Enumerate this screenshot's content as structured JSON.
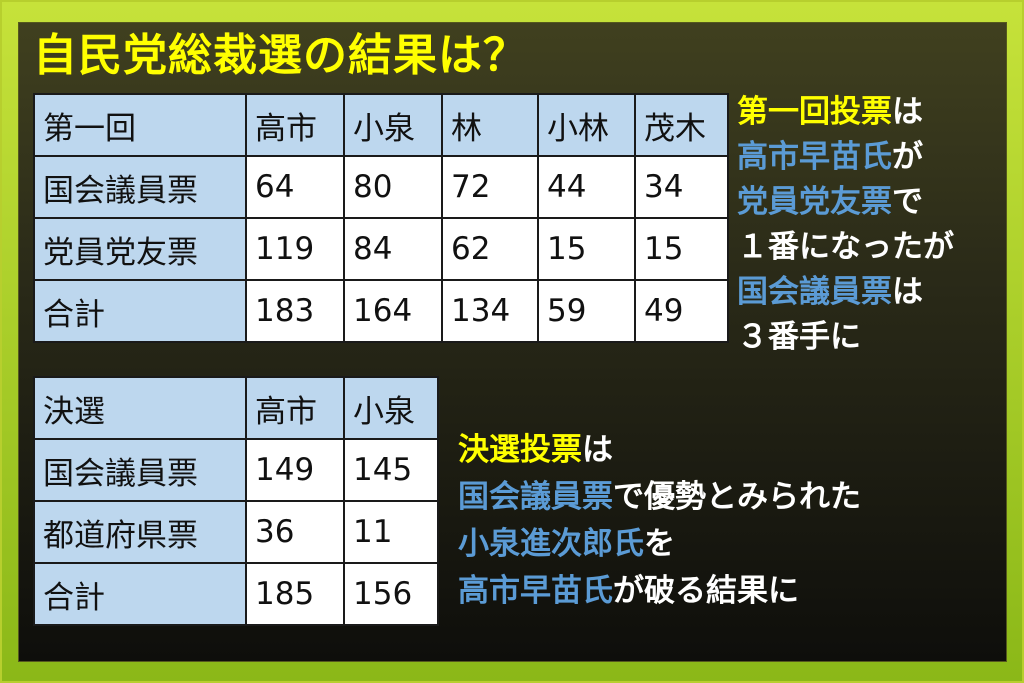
{
  "title": "自民党総裁選の結果は？",
  "colors": {
    "frame": "#c6e23a",
    "header_cell": "#bdd7ee",
    "highlight_yellow": "#ffff00",
    "highlight_blue": "#5b9bd5"
  },
  "first_round": {
    "columns": [
      "第一回",
      "高市",
      "小泉",
      "林",
      "小林",
      "茂木"
    ],
    "rows": [
      {
        "label": "国会議員票",
        "values": [
          "64",
          "80",
          "72",
          "44",
          "34"
        ]
      },
      {
        "label": "党員党友票",
        "values": [
          "119",
          "84",
          "62",
          "15",
          "15"
        ]
      },
      {
        "label": "合計",
        "values": [
          "183",
          "164",
          "134",
          "59",
          "49"
        ]
      }
    ]
  },
  "runoff": {
    "columns": [
      "決選",
      "高市",
      "小泉"
    ],
    "rows": [
      {
        "label": "国会議員票",
        "values": [
          "149",
          "145"
        ]
      },
      {
        "label": "都道府県票",
        "values": [
          "36",
          "11"
        ]
      },
      {
        "label": "合計",
        "values": [
          "185",
          "156"
        ]
      }
    ]
  },
  "note_first": [
    [
      {
        "t": "第一回投票",
        "c": "y"
      },
      {
        "t": "は",
        "c": "w"
      }
    ],
    [
      {
        "t": "高市早苗氏",
        "c": "b"
      },
      {
        "t": "が",
        "c": "w"
      }
    ],
    [
      {
        "t": "党員党友票",
        "c": "b"
      },
      {
        "t": "で",
        "c": "w"
      }
    ],
    [
      {
        "t": "１番になったが",
        "c": "w"
      }
    ],
    [
      {
        "t": "国会議員票",
        "c": "b"
      },
      {
        "t": "は",
        "c": "w"
      }
    ],
    [
      {
        "t": "３番手に",
        "c": "w"
      }
    ]
  ],
  "note_runoff": [
    [
      {
        "t": "決選投票",
        "c": "y"
      },
      {
        "t": "は",
        "c": "w"
      }
    ],
    [
      {
        "t": "国会議員票",
        "c": "b"
      },
      {
        "t": "で優勢とみられた",
        "c": "w"
      }
    ],
    [
      {
        "t": "小泉進次郎氏",
        "c": "b"
      },
      {
        "t": "を",
        "c": "w"
      }
    ],
    [
      {
        "t": "高市早苗氏",
        "c": "b"
      },
      {
        "t": "が破る結果に",
        "c": "w"
      }
    ]
  ]
}
